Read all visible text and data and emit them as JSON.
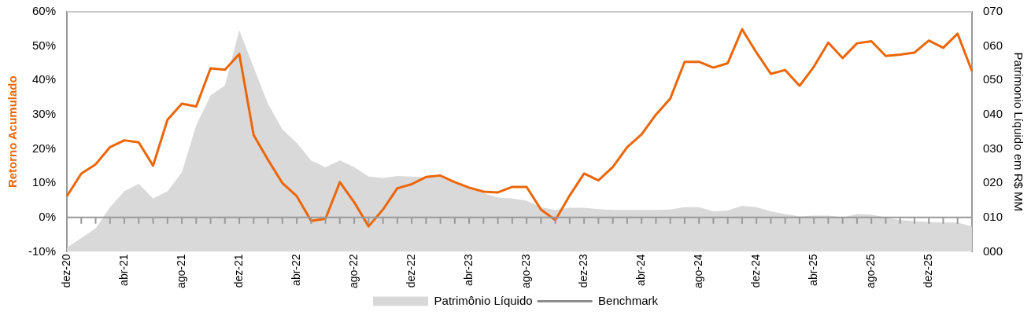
{
  "chart_data": {
    "type": "line",
    "ylabel": "Retorno Acumulado",
    "y2label": "Patrimonio Líquido em R$ MM",
    "categories": [
      "dez-20",
      null,
      null,
      null,
      "abr-21",
      null,
      null,
      null,
      "ago-21",
      null,
      null,
      null,
      "dez-21",
      null,
      null,
      null,
      "abr-22",
      null,
      null,
      null,
      "ago-22",
      null,
      null,
      null,
      "dez-22",
      null,
      null,
      null,
      "abr-23",
      null,
      null,
      null,
      "ago-23",
      null,
      null,
      null,
      "dez-23",
      null,
      null,
      null,
      "abr-24",
      null,
      null,
      null,
      "ago-24",
      null,
      null,
      null,
      "dez-24",
      null,
      null,
      null,
      "abr-25",
      null,
      null,
      null,
      "ago-25",
      null,
      null,
      null,
      "dez-25",
      null,
      null,
      null
    ],
    "series": [
      {
        "name": "Patrimônio Líquido",
        "type": "area",
        "axis": "y2",
        "color": "#d9d9d9",
        "values": [
          1.2,
          4.0,
          6.8,
          13.0,
          17.6,
          19.8,
          15.5,
          17.6,
          23.1,
          36.9,
          45.6,
          48.5,
          64.6,
          53.8,
          43.1,
          35.7,
          31.7,
          26.6,
          24.6,
          26.6,
          24.7,
          21.9,
          21.5,
          22.1,
          21.9,
          21.7,
          21.7,
          20.0,
          18.4,
          17.1,
          15.8,
          15.5,
          14.9,
          13.0,
          12.2,
          12.8,
          12.8,
          12.4,
          12.2,
          12.2,
          12.2,
          12.2,
          12.3,
          13.0,
          13.0,
          11.8,
          12.0,
          13.4,
          13.0,
          11.8,
          11.0,
          10.3,
          10.5,
          10.5,
          10.0,
          11.0,
          10.8,
          10.0,
          9.2,
          8.9,
          8.7,
          8.5,
          8.5,
          7.3
        ]
      },
      {
        "name": "Benchmark",
        "color": "#8c8c8c",
        "values": [
          null,
          null,
          null,
          null,
          null,
          null,
          null,
          null,
          null,
          null,
          null,
          null,
          null,
          null,
          null,
          null,
          null,
          null,
          null,
          null,
          null,
          null,
          null,
          null,
          null,
          null,
          null,
          null,
          null,
          null,
          null,
          null,
          null,
          null,
          null,
          null,
          null,
          null,
          null,
          null,
          null,
          null,
          null,
          null,
          null,
          null,
          null,
          null,
          null,
          null,
          null,
          null,
          null,
          null,
          null,
          null,
          null,
          null,
          null,
          null,
          null,
          null,
          null,
          null
        ]
      },
      {
        "color": "#ec6608",
        "values": [
          6.2,
          12.8,
          15.5,
          20.5,
          22.5,
          21.9,
          15.1,
          28.5,
          33.2,
          32.4,
          43.5,
          43.1,
          47.7,
          24.0,
          16.8,
          10.0,
          6.2,
          -1.0,
          -0.4,
          10.3,
          4.4,
          -2.6,
          2.3,
          8.5,
          9.7,
          11.8,
          12.2,
          10.3,
          8.7,
          7.5,
          7.3,
          8.9,
          8.9,
          2.3,
          -0.8,
          6.4,
          12.8,
          10.8,
          14.7,
          20.5,
          24.2,
          30.0,
          34.7,
          45.4,
          45.4,
          43.7,
          45.0,
          54.9,
          48.1,
          41.9,
          43.0,
          38.4,
          44.0,
          51.0,
          46.5,
          50.8,
          51.4,
          47.1,
          47.5,
          48.1,
          51.6,
          49.5,
          53.6,
          42.7
        ]
      }
    ],
    "ylim": [
      -10,
      60
    ],
    "yticks": [
      {
        "value": -10,
        "label": "-10%"
      },
      {
        "value": 0,
        "label": "0%"
      },
      {
        "value": 10,
        "label": "10%"
      },
      {
        "value": 20,
        "label": "20%"
      },
      {
        "value": 30,
        "label": "30%"
      },
      {
        "value": 40,
        "label": "40%"
      },
      {
        "value": 50,
        "label": "50%"
      },
      {
        "value": 60,
        "label": "60%"
      }
    ],
    "y2lim": [
      0,
      70
    ],
    "y2ticks": [
      {
        "value": 0,
        "label": "000"
      },
      {
        "value": 10,
        "label": "010"
      },
      {
        "value": 20,
        "label": "020"
      },
      {
        "value": 30,
        "label": "030"
      },
      {
        "value": 40,
        "label": "040"
      },
      {
        "value": 50,
        "label": "050"
      },
      {
        "value": 60,
        "label": "060"
      },
      {
        "value": 70,
        "label": "070"
      }
    ],
    "ref_lines": [
      {
        "axis": "y",
        "value": 0,
        "color": "#999999"
      }
    ],
    "legend": "bottom"
  }
}
